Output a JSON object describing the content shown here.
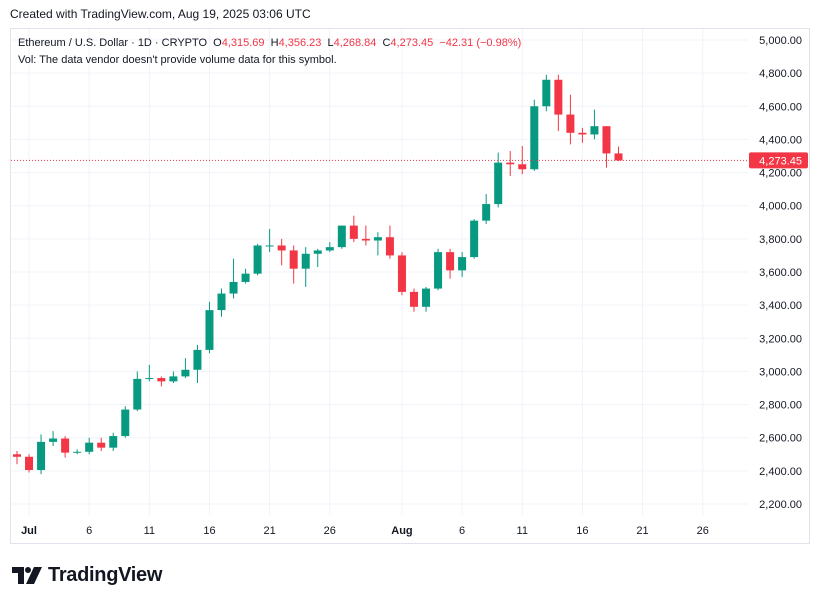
{
  "header": {
    "created": "Created with TradingView.com, Aug 19, 2025 03:06 UTC"
  },
  "legend": {
    "symbol": "Ethereum / U.S. Dollar · 1D · CRYPTO",
    "o_label": "O",
    "o_value": "4,315.69",
    "h_label": "H",
    "h_value": "4,356.23",
    "l_label": "L",
    "l_value": "4,268.84",
    "c_label": "C",
    "c_value": "4,273.45",
    "change": "−42.31 (−0.98%)",
    "volume_note": "Vol: The data vendor doesn't provide volume data for this symbol."
  },
  "brand": {
    "name": "TradingView"
  },
  "colors": {
    "up": "#089981",
    "down": "#f23645",
    "grid": "#f0f3fa",
    "text": "#131722"
  },
  "chart_data": {
    "type": "candlestick",
    "symbol": "Ethereum / U.S. Dollar",
    "interval": "1D",
    "last_price": 4273.45,
    "last_price_label": "4,273.45",
    "ylim": [
      2100,
      5050
    ],
    "y_ticks": [
      2200,
      2400,
      2600,
      2800,
      3000,
      3200,
      3400,
      3600,
      3800,
      4000,
      4200,
      4400,
      4600,
      4800,
      5000
    ],
    "y_tick_labels": [
      "2,200.00",
      "2,400.00",
      "2,600.00",
      "2,800.00",
      "3,000.00",
      "3,200.00",
      "3,400.00",
      "3,600.00",
      "3,800.00",
      "4,000.00",
      "4,200.00",
      "4,400.00",
      "4,600.00",
      "4,800.00",
      "5,000.00"
    ],
    "x_ticks": [
      {
        "label": "Jul",
        "date": "2025-07-01",
        "bold": true
      },
      {
        "label": "6",
        "date": "2025-07-06"
      },
      {
        "label": "11",
        "date": "2025-07-11"
      },
      {
        "label": "16",
        "date": "2025-07-16"
      },
      {
        "label": "21",
        "date": "2025-07-21"
      },
      {
        "label": "26",
        "date": "2025-07-26"
      },
      {
        "label": "Aug",
        "date": "2025-08-01",
        "bold": true
      },
      {
        "label": "6",
        "date": "2025-08-06"
      },
      {
        "label": "11",
        "date": "2025-08-11"
      },
      {
        "label": "16",
        "date": "2025-08-16"
      },
      {
        "label": "21",
        "date": "2025-08-21"
      },
      {
        "label": "26",
        "date": "2025-08-26"
      }
    ],
    "x_start": "2025-06-30",
    "x_end": "2025-08-31",
    "candles": [
      {
        "date": "2025-06-30",
        "o": 2500,
        "h": 2520,
        "l": 2440,
        "c": 2485
      },
      {
        "date": "2025-07-01",
        "o": 2485,
        "h": 2500,
        "l": 2390,
        "c": 2405
      },
      {
        "date": "2025-07-02",
        "o": 2405,
        "h": 2620,
        "l": 2380,
        "c": 2575
      },
      {
        "date": "2025-07-03",
        "o": 2575,
        "h": 2640,
        "l": 2550,
        "c": 2595
      },
      {
        "date": "2025-07-04",
        "o": 2595,
        "h": 2610,
        "l": 2480,
        "c": 2510
      },
      {
        "date": "2025-07-05",
        "o": 2510,
        "h": 2530,
        "l": 2500,
        "c": 2515
      },
      {
        "date": "2025-07-06",
        "o": 2515,
        "h": 2600,
        "l": 2500,
        "c": 2570
      },
      {
        "date": "2025-07-07",
        "o": 2570,
        "h": 2600,
        "l": 2520,
        "c": 2540
      },
      {
        "date": "2025-07-08",
        "o": 2540,
        "h": 2630,
        "l": 2520,
        "c": 2610
      },
      {
        "date": "2025-07-09",
        "o": 2610,
        "h": 2790,
        "l": 2600,
        "c": 2770
      },
      {
        "date": "2025-07-10",
        "o": 2770,
        "h": 3000,
        "l": 2760,
        "c": 2955
      },
      {
        "date": "2025-07-11",
        "o": 2955,
        "h": 3040,
        "l": 2940,
        "c": 2960
      },
      {
        "date": "2025-07-12",
        "o": 2960,
        "h": 2970,
        "l": 2910,
        "c": 2940
      },
      {
        "date": "2025-07-13",
        "o": 2940,
        "h": 3000,
        "l": 2930,
        "c": 2970
      },
      {
        "date": "2025-07-14",
        "o": 2970,
        "h": 3080,
        "l": 2960,
        "c": 3010
      },
      {
        "date": "2025-07-15",
        "o": 3010,
        "h": 3160,
        "l": 2930,
        "c": 3130
      },
      {
        "date": "2025-07-16",
        "o": 3130,
        "h": 3420,
        "l": 3110,
        "c": 3370
      },
      {
        "date": "2025-07-17",
        "o": 3370,
        "h": 3500,
        "l": 3330,
        "c": 3470
      },
      {
        "date": "2025-07-18",
        "o": 3470,
        "h": 3680,
        "l": 3440,
        "c": 3540
      },
      {
        "date": "2025-07-19",
        "o": 3540,
        "h": 3620,
        "l": 3530,
        "c": 3590
      },
      {
        "date": "2025-07-20",
        "o": 3590,
        "h": 3770,
        "l": 3580,
        "c": 3760
      },
      {
        "date": "2025-07-21",
        "o": 3760,
        "h": 3860,
        "l": 3720,
        "c": 3760
      },
      {
        "date": "2025-07-22",
        "o": 3760,
        "h": 3800,
        "l": 3640,
        "c": 3730
      },
      {
        "date": "2025-07-23",
        "o": 3730,
        "h": 3760,
        "l": 3530,
        "c": 3620
      },
      {
        "date": "2025-07-24",
        "o": 3620,
        "h": 3750,
        "l": 3510,
        "c": 3710
      },
      {
        "date": "2025-07-25",
        "o": 3710,
        "h": 3740,
        "l": 3630,
        "c": 3730
      },
      {
        "date": "2025-07-26",
        "o": 3730,
        "h": 3780,
        "l": 3720,
        "c": 3750
      },
      {
        "date": "2025-07-27",
        "o": 3750,
        "h": 3880,
        "l": 3740,
        "c": 3880
      },
      {
        "date": "2025-07-28",
        "o": 3880,
        "h": 3940,
        "l": 3780,
        "c": 3800
      },
      {
        "date": "2025-07-29",
        "o": 3800,
        "h": 3880,
        "l": 3760,
        "c": 3790
      },
      {
        "date": "2025-07-30",
        "o": 3790,
        "h": 3840,
        "l": 3700,
        "c": 3810
      },
      {
        "date": "2025-07-31",
        "o": 3810,
        "h": 3880,
        "l": 3680,
        "c": 3700
      },
      {
        "date": "2025-08-01",
        "o": 3700,
        "h": 3720,
        "l": 3460,
        "c": 3480
      },
      {
        "date": "2025-08-02",
        "o": 3480,
        "h": 3500,
        "l": 3360,
        "c": 3390
      },
      {
        "date": "2025-08-03",
        "o": 3390,
        "h": 3510,
        "l": 3360,
        "c": 3500
      },
      {
        "date": "2025-08-04",
        "o": 3500,
        "h": 3740,
        "l": 3490,
        "c": 3720
      },
      {
        "date": "2025-08-05",
        "o": 3720,
        "h": 3740,
        "l": 3560,
        "c": 3610
      },
      {
        "date": "2025-08-06",
        "o": 3610,
        "h": 3720,
        "l": 3570,
        "c": 3690
      },
      {
        "date": "2025-08-07",
        "o": 3690,
        "h": 3920,
        "l": 3680,
        "c": 3910
      },
      {
        "date": "2025-08-08",
        "o": 3910,
        "h": 4070,
        "l": 3890,
        "c": 4010
      },
      {
        "date": "2025-08-09",
        "o": 4010,
        "h": 4320,
        "l": 3990,
        "c": 4260
      },
      {
        "date": "2025-08-10",
        "o": 4260,
        "h": 4330,
        "l": 4180,
        "c": 4250
      },
      {
        "date": "2025-08-11",
        "o": 4250,
        "h": 4360,
        "l": 4190,
        "c": 4220
      },
      {
        "date": "2025-08-12",
        "o": 4220,
        "h": 4640,
        "l": 4210,
        "c": 4600
      },
      {
        "date": "2025-08-13",
        "o": 4600,
        "h": 4790,
        "l": 4570,
        "c": 4760
      },
      {
        "date": "2025-08-14",
        "o": 4760,
        "h": 4790,
        "l": 4450,
        "c": 4550
      },
      {
        "date": "2025-08-15",
        "o": 4550,
        "h": 4670,
        "l": 4370,
        "c": 4440
      },
      {
        "date": "2025-08-16",
        "o": 4440,
        "h": 4470,
        "l": 4380,
        "c": 4430
      },
      {
        "date": "2025-08-17",
        "o": 4430,
        "h": 4580,
        "l": 4400,
        "c": 4480
      },
      {
        "date": "2025-08-18",
        "o": 4480,
        "h": 4480,
        "l": 4230,
        "c": 4315.69
      },
      {
        "date": "2025-08-19",
        "o": 4315.69,
        "h": 4356.23,
        "l": 4268.84,
        "c": 4273.45
      }
    ]
  }
}
